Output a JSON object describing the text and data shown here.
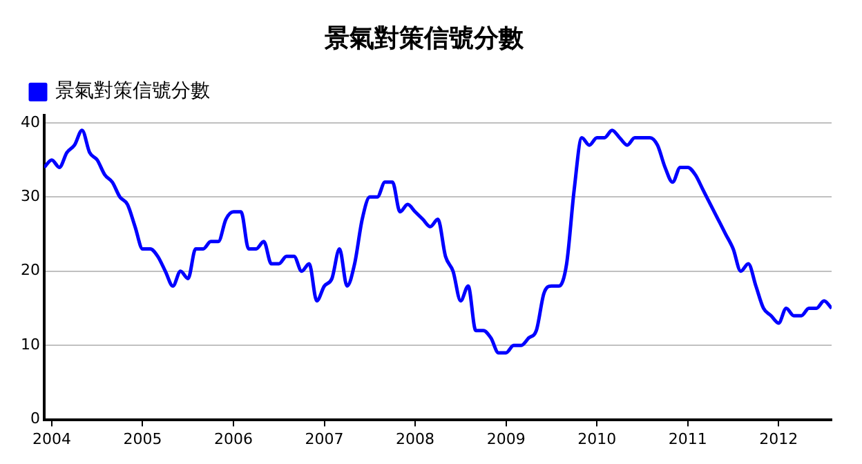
{
  "chart_data": {
    "type": "line",
    "title": "景氣對策信號分數",
    "x": [
      "2003-12",
      "2004-01",
      "2004-02",
      "2004-03",
      "2004-04",
      "2004-05",
      "2004-06",
      "2004-07",
      "2004-08",
      "2004-09",
      "2004-10",
      "2004-11",
      "2004-12",
      "2005-01",
      "2005-02",
      "2005-03",
      "2005-04",
      "2005-05",
      "2005-06",
      "2005-07",
      "2005-08",
      "2005-09",
      "2005-10",
      "2005-11",
      "2005-12",
      "2006-01",
      "2006-02",
      "2006-03",
      "2006-04",
      "2006-05",
      "2006-06",
      "2006-07",
      "2006-08",
      "2006-09",
      "2006-10",
      "2006-11",
      "2006-12",
      "2007-01",
      "2007-02",
      "2007-03",
      "2007-04",
      "2007-05",
      "2007-06",
      "2007-07",
      "2007-08",
      "2007-09",
      "2007-10",
      "2007-11",
      "2007-12",
      "2008-01",
      "2008-02",
      "2008-03",
      "2008-04",
      "2008-05",
      "2008-06",
      "2008-07",
      "2008-08",
      "2008-09",
      "2008-10",
      "2008-11",
      "2008-12",
      "2009-01",
      "2009-02",
      "2009-03",
      "2009-04",
      "2009-05",
      "2009-06",
      "2009-07",
      "2009-08",
      "2009-09",
      "2009-10",
      "2009-11",
      "2009-12",
      "2010-01",
      "2010-02",
      "2010-03",
      "2010-04",
      "2010-05",
      "2010-06",
      "2010-07",
      "2010-08",
      "2010-09",
      "2010-10",
      "2010-11",
      "2010-12",
      "2011-01",
      "2011-02",
      "2011-03",
      "2011-04",
      "2011-05",
      "2011-06",
      "2011-07",
      "2011-08",
      "2011-09",
      "2011-10",
      "2011-11",
      "2011-12",
      "2012-01",
      "2012-02",
      "2012-03",
      "2012-04",
      "2012-05",
      "2012-06",
      "2012-07",
      "2012-08"
    ],
    "series": [
      {
        "name": "景氣對策信號分數",
        "color": "#0000ff",
        "values": [
          34,
          35,
          34,
          36,
          37,
          39,
          36,
          35,
          33,
          32,
          30,
          29,
          26,
          23,
          23,
          22,
          20,
          18,
          20,
          19,
          23,
          23,
          24,
          24,
          27,
          28,
          28,
          23,
          23,
          24,
          21,
          21,
          22,
          22,
          20,
          21,
          16,
          18,
          19,
          23,
          18,
          21,
          27,
          30,
          30,
          32,
          32,
          28,
          29,
          28,
          27,
          26,
          27,
          22,
          20,
          16,
          18,
          12,
          12,
          11,
          9,
          9,
          10,
          10,
          11,
          12,
          17,
          18,
          18,
          21,
          31,
          38,
          37,
          38,
          38,
          39,
          38,
          37,
          38,
          38,
          38,
          37,
          34,
          32,
          34,
          34,
          33,
          31,
          29,
          27,
          25,
          23,
          20,
          21,
          18,
          15,
          14,
          13,
          15,
          14,
          14,
          15,
          15,
          16,
          15
        ]
      }
    ],
    "xlim": [
      "2003-12",
      "2012-08"
    ],
    "xticks": [
      "2004",
      "2005",
      "2006",
      "2007",
      "2008",
      "2009",
      "2010",
      "2011",
      "2012"
    ],
    "ylim": [
      0,
      41
    ],
    "yticks": [
      0,
      10,
      20,
      30,
      40
    ],
    "grid": "y",
    "legend": "top left"
  }
}
